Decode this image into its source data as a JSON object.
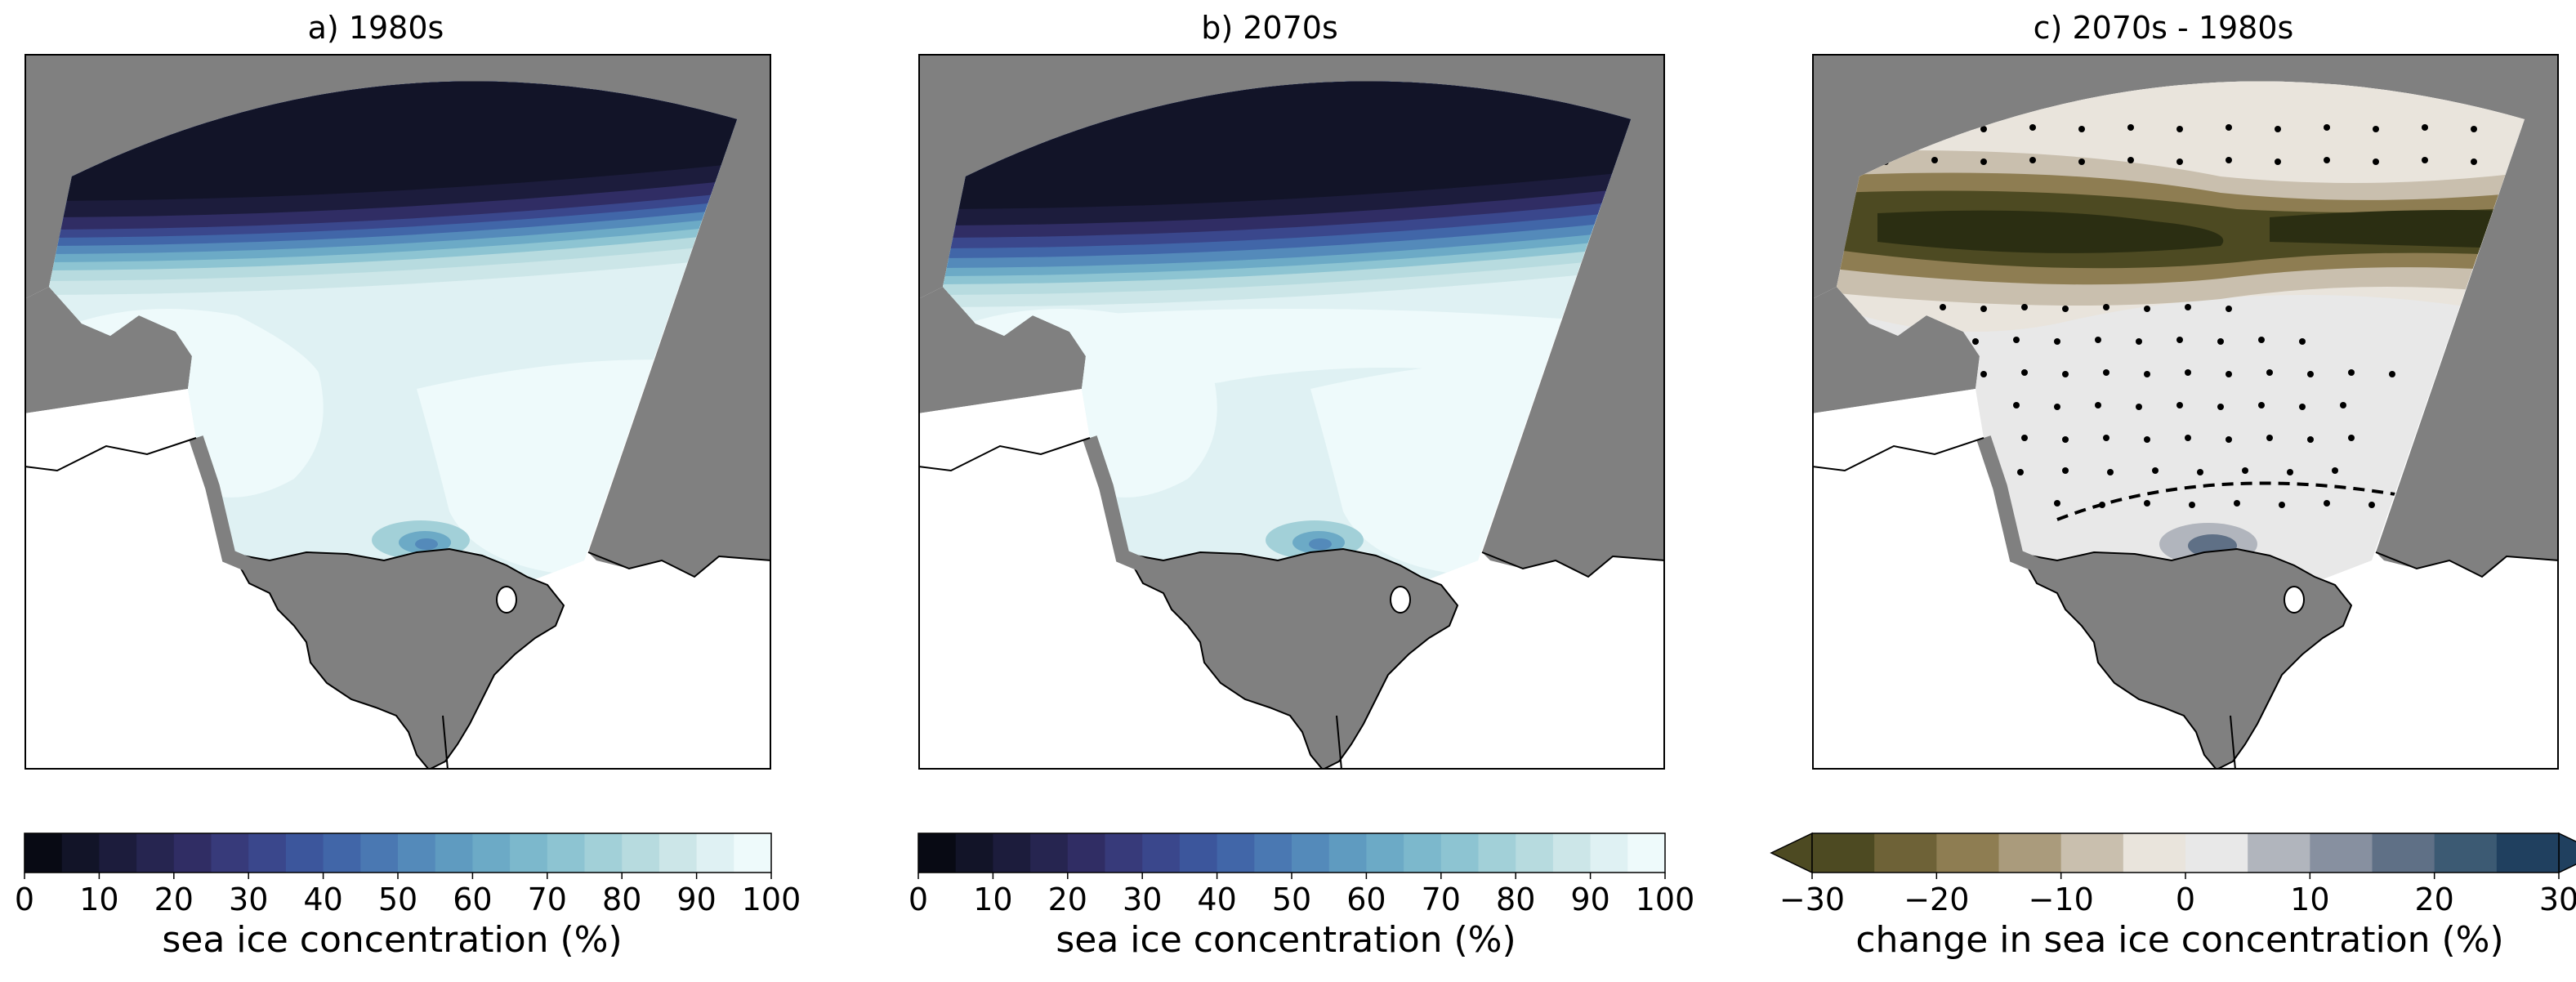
{
  "colors": {
    "land": "#808080",
    "ocean_white": "#ffffff",
    "ice_colormap": [
      "#080a14",
      "#121428",
      "#1c1c3c",
      "#262550",
      "#302d64",
      "#373a7a",
      "#3a478c",
      "#3c569c",
      "#4166a8",
      "#4a78b2",
      "#548aba",
      "#5f9bc0",
      "#6caac6",
      "#7cb8cc",
      "#8dc4d2",
      "#a2d0d8",
      "#b7dbdf",
      "#cce6e8",
      "#dff1f3",
      "#eefafb"
    ],
    "diff_colormap": [
      "#2b2e12",
      "#4d4a22",
      "#6e6237",
      "#8e7d52",
      "#aa9b7c",
      "#c9bfae",
      "#e9e4dc",
      "#e8e8e8",
      "#b1b5bd",
      "#8790a0",
      "#5f7086",
      "#3c5a73",
      "#20405f",
      "#0f2a4a"
    ]
  },
  "chart_data": [
    {
      "type": "heatmap",
      "title": "a) 1980s",
      "colorbar": {
        "label": "sea ice concentration (%)",
        "range": [
          0,
          100
        ],
        "ticks": [
          "0",
          "10",
          "20",
          "30",
          "40",
          "50",
          "60",
          "70",
          "80",
          "90",
          "100"
        ]
      },
      "field_description_levels_percent": {
        "northern_edge": 0,
        "ice_edge_gradient": [
          10,
          80
        ],
        "interior": [
          90,
          100
        ],
        "polynya_south": 60
      }
    },
    {
      "type": "heatmap",
      "title": "b) 2070s",
      "colorbar": {
        "label": "sea ice concentration (%)",
        "range": [
          0,
          100
        ],
        "ticks": [
          "0",
          "10",
          "20",
          "30",
          "40",
          "50",
          "60",
          "70",
          "80",
          "90",
          "100"
        ]
      },
      "field_description_levels_percent": {
        "northern_edge": 0,
        "ice_edge_gradient": [
          10,
          80
        ],
        "interior": [
          90,
          100
        ],
        "polynya_south": 60
      }
    },
    {
      "type": "heatmap",
      "title": "c) 2070s - 1980s",
      "colorbar": {
        "label": "change in sea ice concentration (%)",
        "range": [
          -30,
          30
        ],
        "extend": "both",
        "ticks": [
          "−30",
          "−20",
          "−10",
          "0",
          "10",
          "20",
          "30"
        ]
      },
      "field_description_levels_percent": {
        "northern_band": -30,
        "interior": 0,
        "polynya_south": 15
      },
      "stippling": "significant change",
      "dashed_contour": true
    }
  ]
}
